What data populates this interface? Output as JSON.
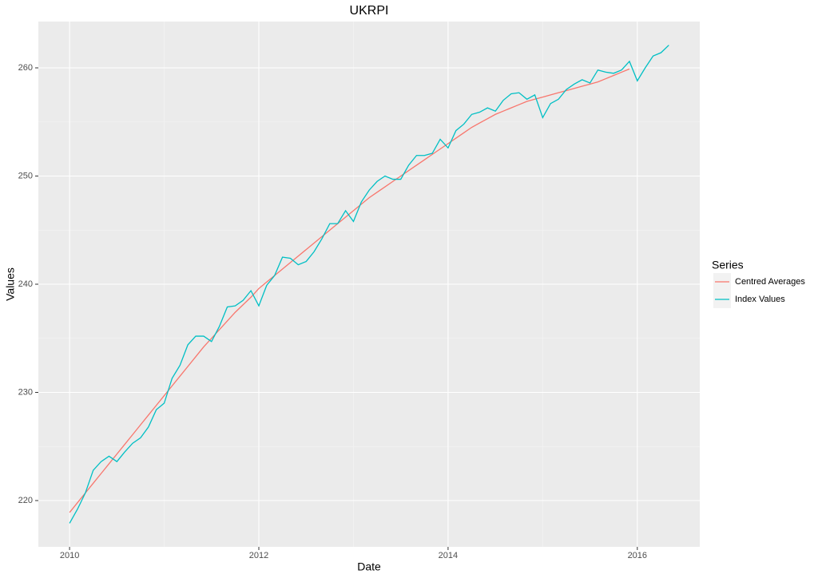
{
  "chart_data": {
    "type": "line",
    "title": "UKRPI",
    "x_label": "Date",
    "y_label": "Values",
    "legend_title": "Series",
    "legend_position": "right",
    "grid": true,
    "xlim": [
      2009.67,
      2016.66
    ],
    "ylim": [
      215.72,
      264.28
    ],
    "xticks": [
      2010,
      2012,
      2014,
      2016
    ],
    "yticks": [
      220,
      230,
      240,
      250,
      260
    ],
    "xminor": [
      2011,
      2013,
      2015
    ],
    "yminor": [
      225,
      235,
      245,
      255
    ],
    "series": [
      {
        "name": "Centred Averages",
        "color": "#f8766d",
        "x": [
          2010,
          2010.0833,
          2010.1667,
          2010.25,
          2010.3333,
          2010.4167,
          2010.5,
          2010.5833,
          2010.6667,
          2010.75,
          2010.8333,
          2010.9167,
          2011,
          2011.0833,
          2011.1667,
          2011.25,
          2011.3333,
          2011.4167,
          2011.5,
          2011.5833,
          2011.6667,
          2011.75,
          2011.8333,
          2011.9167,
          2012,
          2012.0833,
          2012.1667,
          2012.25,
          2012.3333,
          2012.4167,
          2012.5,
          2012.5833,
          2012.6667,
          2012.75,
          2012.8333,
          2012.9167,
          2013,
          2013.0833,
          2013.1667,
          2013.25,
          2013.3333,
          2013.4167,
          2013.5,
          2013.5833,
          2013.6667,
          2013.75,
          2013.8333,
          2013.9167,
          2014,
          2014.0833,
          2014.1667,
          2014.25,
          2014.3333,
          2014.4167,
          2014.5,
          2014.5833,
          2014.6667,
          2014.75,
          2014.8333,
          2014.9167,
          2015,
          2015.0833,
          2015.1667,
          2015.25,
          2015.3333,
          2015.4167,
          2015.5,
          2015.5833,
          2015.6667,
          2015.75,
          2015.8333,
          2015.9167
        ],
        "values": [
          218.9,
          219.8,
          220.7,
          221.6,
          222.5,
          223.4,
          224.3,
          225.2,
          226.1,
          227.0,
          227.9,
          228.8,
          229.7,
          230.6,
          231.5,
          232.4,
          233.3,
          234.2,
          235.0,
          235.8,
          236.6,
          237.4,
          238.1,
          238.8,
          239.6,
          240.2,
          240.8,
          241.4,
          242.0,
          242.6,
          243.2,
          243.8,
          244.4,
          245.0,
          245.6,
          246.2,
          246.8,
          247.4,
          248.0,
          248.5,
          249.0,
          249.5,
          250.0,
          250.5,
          251.0,
          251.5,
          252.0,
          252.5,
          253.0,
          253.5,
          254.0,
          254.5,
          254.9,
          255.3,
          255.7,
          256.0,
          256.3,
          256.6,
          256.9,
          257.1,
          257.3,
          257.5,
          257.7,
          257.9,
          258.1,
          258.3,
          258.5,
          258.7,
          259.0,
          259.3,
          259.6,
          259.9
        ]
      },
      {
        "name": "Index Values",
        "color": "#00bfc4",
        "x": [
          2010,
          2010.0833,
          2010.1667,
          2010.25,
          2010.3333,
          2010.4167,
          2010.5,
          2010.5833,
          2010.6667,
          2010.75,
          2010.8333,
          2010.9167,
          2011,
          2011.0833,
          2011.1667,
          2011.25,
          2011.3333,
          2011.4167,
          2011.5,
          2011.5833,
          2011.6667,
          2011.75,
          2011.8333,
          2011.9167,
          2012,
          2012.0833,
          2012.1667,
          2012.25,
          2012.3333,
          2012.4167,
          2012.5,
          2012.5833,
          2012.6667,
          2012.75,
          2012.8333,
          2012.9167,
          2013,
          2013.0833,
          2013.1667,
          2013.25,
          2013.3333,
          2013.4167,
          2013.5,
          2013.5833,
          2013.6667,
          2013.75,
          2013.8333,
          2013.9167,
          2014,
          2014.0833,
          2014.1667,
          2014.25,
          2014.3333,
          2014.4167,
          2014.5,
          2014.5833,
          2014.6667,
          2014.75,
          2014.8333,
          2014.9167,
          2015,
          2015.0833,
          2015.1667,
          2015.25,
          2015.3333,
          2015.4167,
          2015.5,
          2015.5833,
          2015.6667,
          2015.75,
          2015.8333,
          2015.9167,
          2016,
          2016.0833,
          2016.1667,
          2016.25,
          2016.3333
        ],
        "values": [
          217.9,
          219.2,
          220.7,
          222.8,
          223.6,
          224.1,
          223.6,
          224.5,
          225.3,
          225.8,
          226.8,
          228.4,
          229.0,
          231.3,
          232.5,
          234.4,
          235.2,
          235.2,
          234.7,
          236.1,
          237.9,
          238.0,
          238.5,
          239.4,
          238.0,
          239.9,
          240.8,
          242.5,
          242.4,
          241.8,
          242.1,
          243.0,
          244.2,
          245.6,
          245.6,
          246.8,
          245.8,
          247.6,
          248.7,
          249.5,
          250.0,
          249.7,
          249.7,
          251.0,
          251.9,
          251.9,
          252.1,
          253.4,
          252.6,
          254.2,
          254.8,
          255.7,
          255.9,
          256.3,
          256.0,
          257.0,
          257.6,
          257.7,
          257.1,
          257.5,
          255.4,
          256.7,
          257.1,
          258.0,
          258.5,
          258.9,
          258.6,
          259.8,
          259.6,
          259.5,
          259.8,
          260.6,
          258.8,
          260.0,
          261.1,
          261.4,
          262.1
        ]
      }
    ]
  }
}
